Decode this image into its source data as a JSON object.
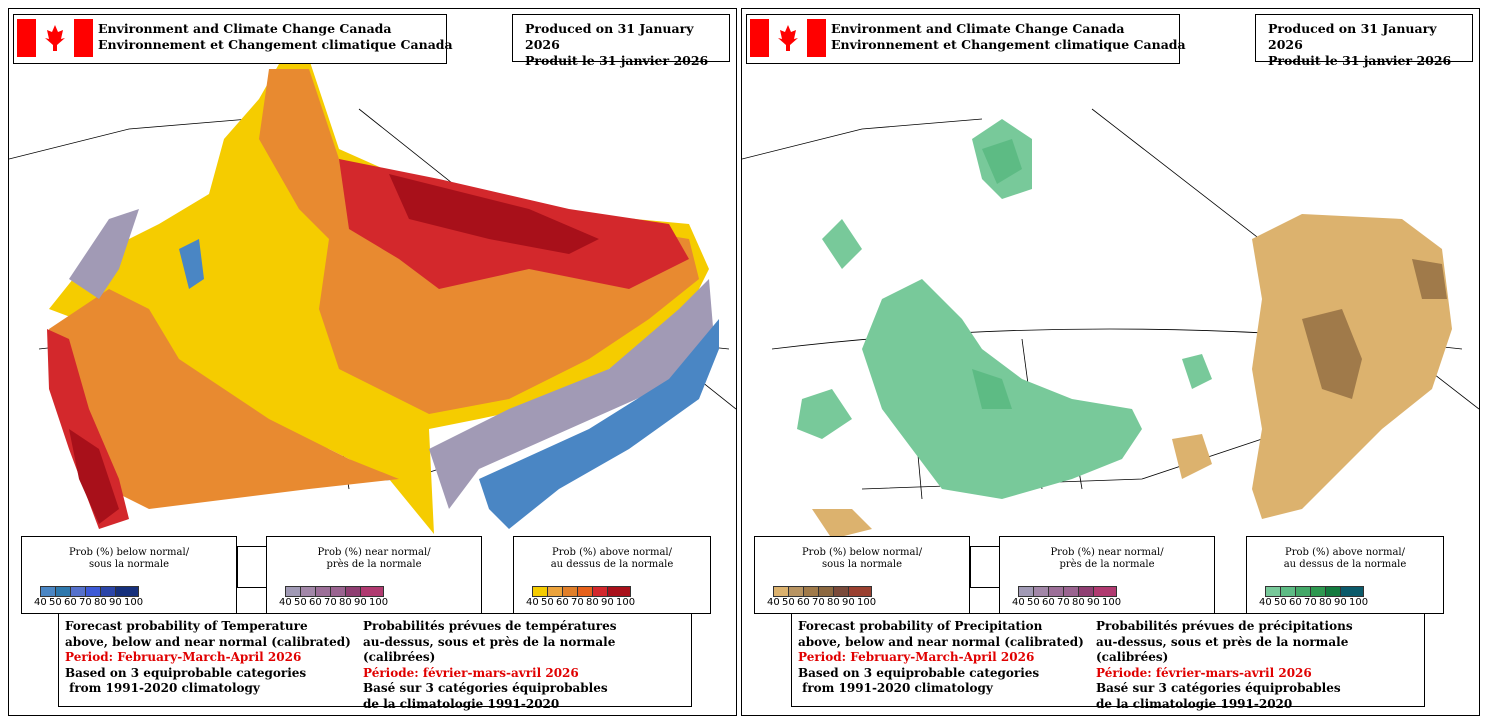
{
  "panels": [
    {
      "variable": "Temperature",
      "header": {
        "org_en": "Environment and Climate Change Canada",
        "org_fr": "Environnement et Changement climatique Canada"
      },
      "produced": {
        "en": "Produced on 31 January 2026",
        "fr": "Produit le 31 janvier 2026"
      },
      "legends": [
        {
          "title_en": "Prob (%) below normal/",
          "title_fr": "sous la normale",
          "colors": [
            "#4a86c4",
            "#2e78ad",
            "#5571cc",
            "#3d5ad6",
            "#2b45a8",
            "#16307c"
          ]
        },
        {
          "title_en": "Prob (%) near normal/",
          "title_fr": "près de la normale",
          "colors": [
            "#a19ab5",
            "#a287a8",
            "#9c6f98",
            "#9a6490",
            "#8f3f72",
            "#b03a70"
          ]
        },
        {
          "title_en": "Prob (%) above normal/",
          "title_fr": "au dessus de la normale",
          "colors": [
            "#f5cc00",
            "#eca33c",
            "#e07f2a",
            "#e6611b",
            "#d3282c",
            "#a8101a"
          ]
        }
      ],
      "ticks": [
        "40",
        "50",
        "60",
        "70",
        "80",
        "90",
        "100"
      ],
      "footer": {
        "en": [
          "Forecast probability of Temperature",
          "above, below and near normal (calibrated)",
          "Period: February-March-April 2026",
          "Based on 3 equiprobable categories",
          " from 1991-2020 climatology"
        ],
        "fr": [
          "Probabilités prévues de températures",
          "au-dessus, sous et près de la normale (calibrées)",
          "Période: février-mars-avril 2026",
          "Basé sur 3 catégories équiprobables",
          "de la climatologie 1991-2020"
        ]
      }
    },
    {
      "variable": "Precipitation",
      "header": {
        "org_en": "Environment and Climate Change Canada",
        "org_fr": "Environnement et Changement climatique Canada"
      },
      "produced": {
        "en": "Produced on 31 January 2026",
        "fr": "Produit le 31 janvier 2026"
      },
      "legends": [
        {
          "title_en": "Prob (%) below normal/",
          "title_fr": "sous la normale",
          "colors": [
            "#dcb26e",
            "#b89462",
            "#a07a4a",
            "#8c6840",
            "#7a4a3a",
            "#9a4030"
          ]
        },
        {
          "title_en": "Prob (%) near normal/",
          "title_fr": "près de la normale",
          "colors": [
            "#a19ab5",
            "#a287a8",
            "#9c6f98",
            "#9a6490",
            "#8f3f72",
            "#b03a70"
          ]
        },
        {
          "title_en": "Prob (%) above normal/",
          "title_fr": "au dessus de la normale",
          "colors": [
            "#78c99a",
            "#5dbb84",
            "#44a868",
            "#2e9850",
            "#137a3e",
            "#0a5a6a"
          ]
        }
      ],
      "ticks": [
        "40",
        "50",
        "60",
        "70",
        "80",
        "90",
        "100"
      ],
      "footer": {
        "en": [
          "Forecast probability of Precipitation",
          "above, below and near normal (calibrated)",
          "Period: February-March-April 2026",
          "Based on 3 equiprobable categories",
          " from 1991-2020 climatology"
        ],
        "fr": [
          "Probabilités prévues de précipitations",
          "au-dessus, sous et près de la normale (calibrées)",
          "Période: février-mars-avril 2026",
          "Basé sur 3 catégories équiprobables",
          "de la climatologie 1991-2020"
        ]
      }
    }
  ]
}
